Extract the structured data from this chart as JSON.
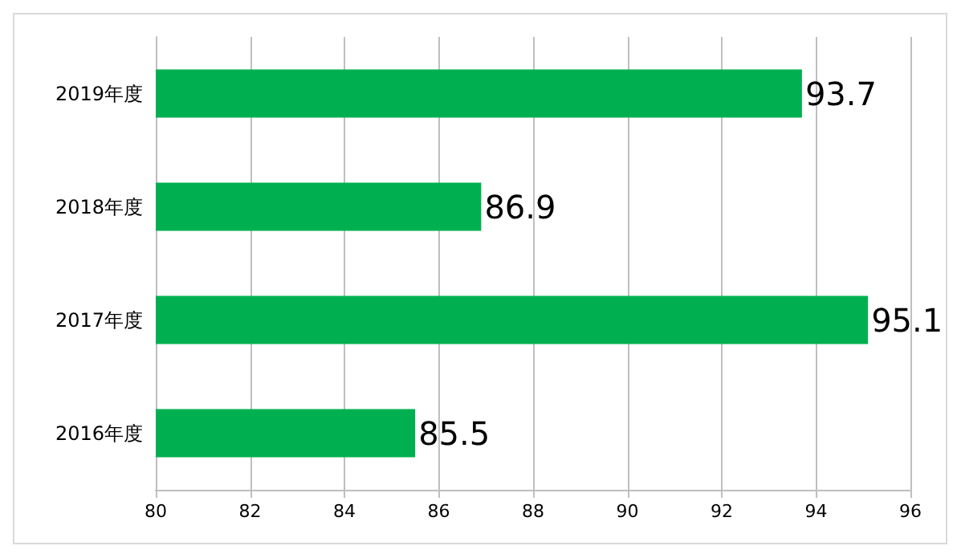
{
  "chart_data": {
    "type": "bar",
    "orientation": "horizontal",
    "categories": [
      "2019年度",
      "2018年度",
      "2017年度",
      "2016年度"
    ],
    "values": [
      93.7,
      86.9,
      95.1,
      85.5
    ],
    "color": "#00b050",
    "xlim": [
      80,
      96
    ],
    "xticks": [
      80,
      82,
      84,
      86,
      88,
      90,
      92,
      94,
      96
    ],
    "grid": "x",
    "data_labels": true
  }
}
